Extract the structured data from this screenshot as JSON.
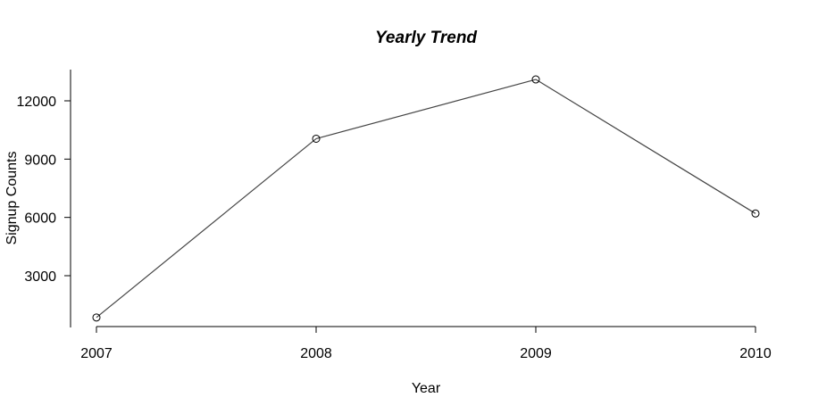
{
  "chart_data": {
    "type": "line",
    "title": "Yearly Trend",
    "xlabel": "Year",
    "ylabel": "Signup Counts",
    "x": [
      "2007",
      "2008",
      "2009",
      "2010"
    ],
    "series": [
      {
        "values": [
          850,
          10050,
          13100,
          6200
        ]
      }
    ],
    "yticks": [
      3000,
      6000,
      9000,
      12000
    ],
    "ylim": [
      -200,
      13600
    ],
    "grid": false,
    "marker": "open-circle",
    "line_color": "#444444"
  }
}
